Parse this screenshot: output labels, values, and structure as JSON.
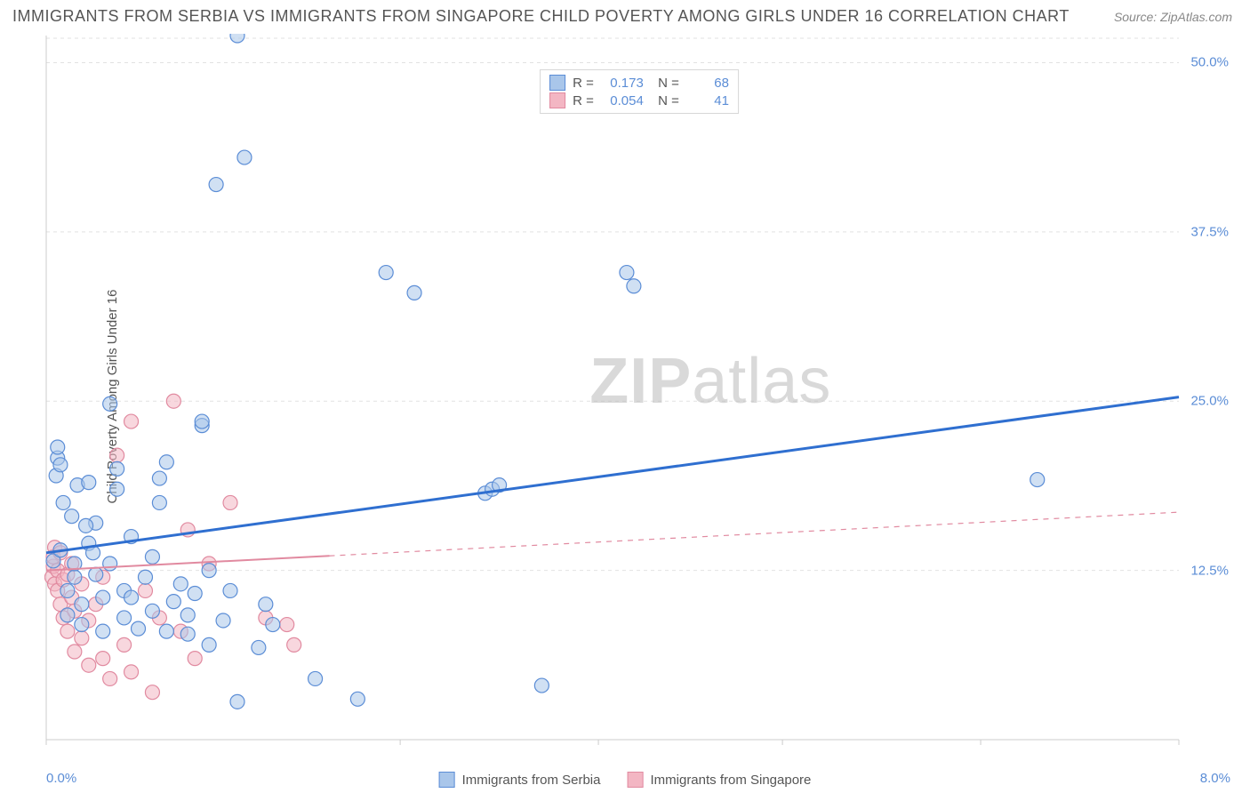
{
  "title": "IMMIGRANTS FROM SERBIA VS IMMIGRANTS FROM SINGAPORE CHILD POVERTY AMONG GIRLS UNDER 16 CORRELATION CHART",
  "source": "Source: ZipAtlas.com",
  "ylabel": "Child Poverty Among Girls Under 16",
  "watermark_a": "ZIP",
  "watermark_b": "atlas",
  "chart": {
    "type": "scatter",
    "xlim": [
      0,
      8
    ],
    "ylim": [
      0,
      52
    ],
    "x_ticks": [
      0,
      2.5,
      3.9,
      5.2,
      6.6,
      8
    ],
    "x_tick_labels": {
      "0": "0.0%",
      "8": "8.0%"
    },
    "y_ticks": [
      12.5,
      25,
      37.5,
      50
    ],
    "y_tick_labels": {
      "12.5": "12.5%",
      "25": "25.0%",
      "37.5": "37.5%",
      "50": "50.0%"
    },
    "background_color": "#ffffff",
    "grid_color": "#e2e2e2",
    "axis_color": "#cccccc",
    "marker_radius": 8,
    "marker_stroke_width": 1.2,
    "series": [
      {
        "name": "Immigrants from Serbia",
        "stats": {
          "R": "0.173",
          "N": "68"
        },
        "fill": "#a9c6ea",
        "stroke": "#5b8dd6",
        "fill_opacity": 0.55,
        "trend": {
          "x0": 0,
          "y0": 13.8,
          "x1": 8,
          "y1": 25.3,
          "color": "#2f6fd0",
          "width": 3,
          "solid_until": 8
        },
        "points": [
          [
            0.05,
            13.2
          ],
          [
            0.07,
            19.5
          ],
          [
            0.08,
            20.8
          ],
          [
            0.08,
            21.6
          ],
          [
            0.1,
            14.0
          ],
          [
            0.1,
            20.3
          ],
          [
            0.15,
            9.2
          ],
          [
            0.15,
            11.0
          ],
          [
            0.18,
            16.5
          ],
          [
            0.2,
            12.0
          ],
          [
            0.2,
            13.0
          ],
          [
            0.22,
            18.8
          ],
          [
            0.25,
            8.5
          ],
          [
            0.25,
            10.0
          ],
          [
            0.3,
            14.5
          ],
          [
            0.3,
            19.0
          ],
          [
            0.35,
            12.2
          ],
          [
            0.35,
            16.0
          ],
          [
            0.4,
            8.0
          ],
          [
            0.4,
            10.5
          ],
          [
            0.45,
            13.0
          ],
          [
            0.45,
            24.8
          ],
          [
            0.5,
            18.5
          ],
          [
            0.5,
            20.0
          ],
          [
            0.55,
            9.0
          ],
          [
            0.55,
            11.0
          ],
          [
            0.6,
            10.5
          ],
          [
            0.6,
            15.0
          ],
          [
            0.65,
            8.2
          ],
          [
            0.7,
            12.0
          ],
          [
            0.75,
            9.5
          ],
          [
            0.75,
            13.5
          ],
          [
            0.8,
            17.5
          ],
          [
            0.8,
            19.3
          ],
          [
            0.85,
            8.0
          ],
          [
            0.85,
            20.5
          ],
          [
            0.9,
            10.2
          ],
          [
            0.95,
            11.5
          ],
          [
            1.0,
            7.8
          ],
          [
            1.0,
            9.2
          ],
          [
            1.05,
            10.8
          ],
          [
            1.1,
            23.2
          ],
          [
            1.1,
            23.5
          ],
          [
            1.15,
            7.0
          ],
          [
            1.15,
            12.5
          ],
          [
            1.2,
            41.0
          ],
          [
            1.25,
            8.8
          ],
          [
            1.3,
            11.0
          ],
          [
            1.35,
            2.8
          ],
          [
            1.35,
            52.0
          ],
          [
            1.4,
            43.0
          ],
          [
            1.5,
            6.8
          ],
          [
            1.55,
            10.0
          ],
          [
            1.6,
            8.5
          ],
          [
            1.9,
            4.5
          ],
          [
            2.2,
            3.0
          ],
          [
            2.4,
            34.5
          ],
          [
            2.6,
            33.0
          ],
          [
            3.1,
            18.2
          ],
          [
            3.15,
            18.5
          ],
          [
            3.2,
            18.8
          ],
          [
            3.5,
            4.0
          ],
          [
            4.1,
            34.5
          ],
          [
            4.15,
            33.5
          ],
          [
            7.0,
            19.2
          ],
          [
            0.12,
            17.5
          ],
          [
            0.28,
            15.8
          ],
          [
            0.33,
            13.8
          ]
        ]
      },
      {
        "name": "Immigrants from Singapore",
        "stats": {
          "R": "0.054",
          "N": "41"
        },
        "fill": "#f3b6c3",
        "stroke": "#e18aa0",
        "fill_opacity": 0.55,
        "trend": {
          "x0": 0,
          "y0": 12.5,
          "x1": 8,
          "y1": 16.8,
          "color": "#e18aa0",
          "width": 2,
          "solid_until": 2.0
        },
        "points": [
          [
            0.04,
            12.0
          ],
          [
            0.05,
            12.8
          ],
          [
            0.05,
            13.5
          ],
          [
            0.06,
            11.5
          ],
          [
            0.06,
            14.2
          ],
          [
            0.08,
            11.0
          ],
          [
            0.08,
            12.5
          ],
          [
            0.1,
            10.0
          ],
          [
            0.1,
            13.8
          ],
          [
            0.12,
            9.0
          ],
          [
            0.12,
            11.8
          ],
          [
            0.15,
            8.0
          ],
          [
            0.15,
            12.2
          ],
          [
            0.18,
            10.5
          ],
          [
            0.18,
            13.0
          ],
          [
            0.2,
            6.5
          ],
          [
            0.2,
            9.5
          ],
          [
            0.25,
            7.5
          ],
          [
            0.25,
            11.5
          ],
          [
            0.3,
            5.5
          ],
          [
            0.3,
            8.8
          ],
          [
            0.35,
            10.0
          ],
          [
            0.4,
            6.0
          ],
          [
            0.4,
            12.0
          ],
          [
            0.45,
            4.5
          ],
          [
            0.5,
            21.0
          ],
          [
            0.55,
            7.0
          ],
          [
            0.6,
            5.0
          ],
          [
            0.6,
            23.5
          ],
          [
            0.7,
            11.0
          ],
          [
            0.75,
            3.5
          ],
          [
            0.8,
            9.0
          ],
          [
            0.9,
            25.0
          ],
          [
            0.95,
            8.0
          ],
          [
            1.0,
            15.5
          ],
          [
            1.05,
            6.0
          ],
          [
            1.15,
            13.0
          ],
          [
            1.3,
            17.5
          ],
          [
            1.55,
            9.0
          ],
          [
            1.7,
            8.5
          ],
          [
            1.75,
            7.0
          ]
        ]
      }
    ]
  },
  "legend_bottom": [
    "Immigrants from Serbia",
    "Immigrants from Singapore"
  ]
}
